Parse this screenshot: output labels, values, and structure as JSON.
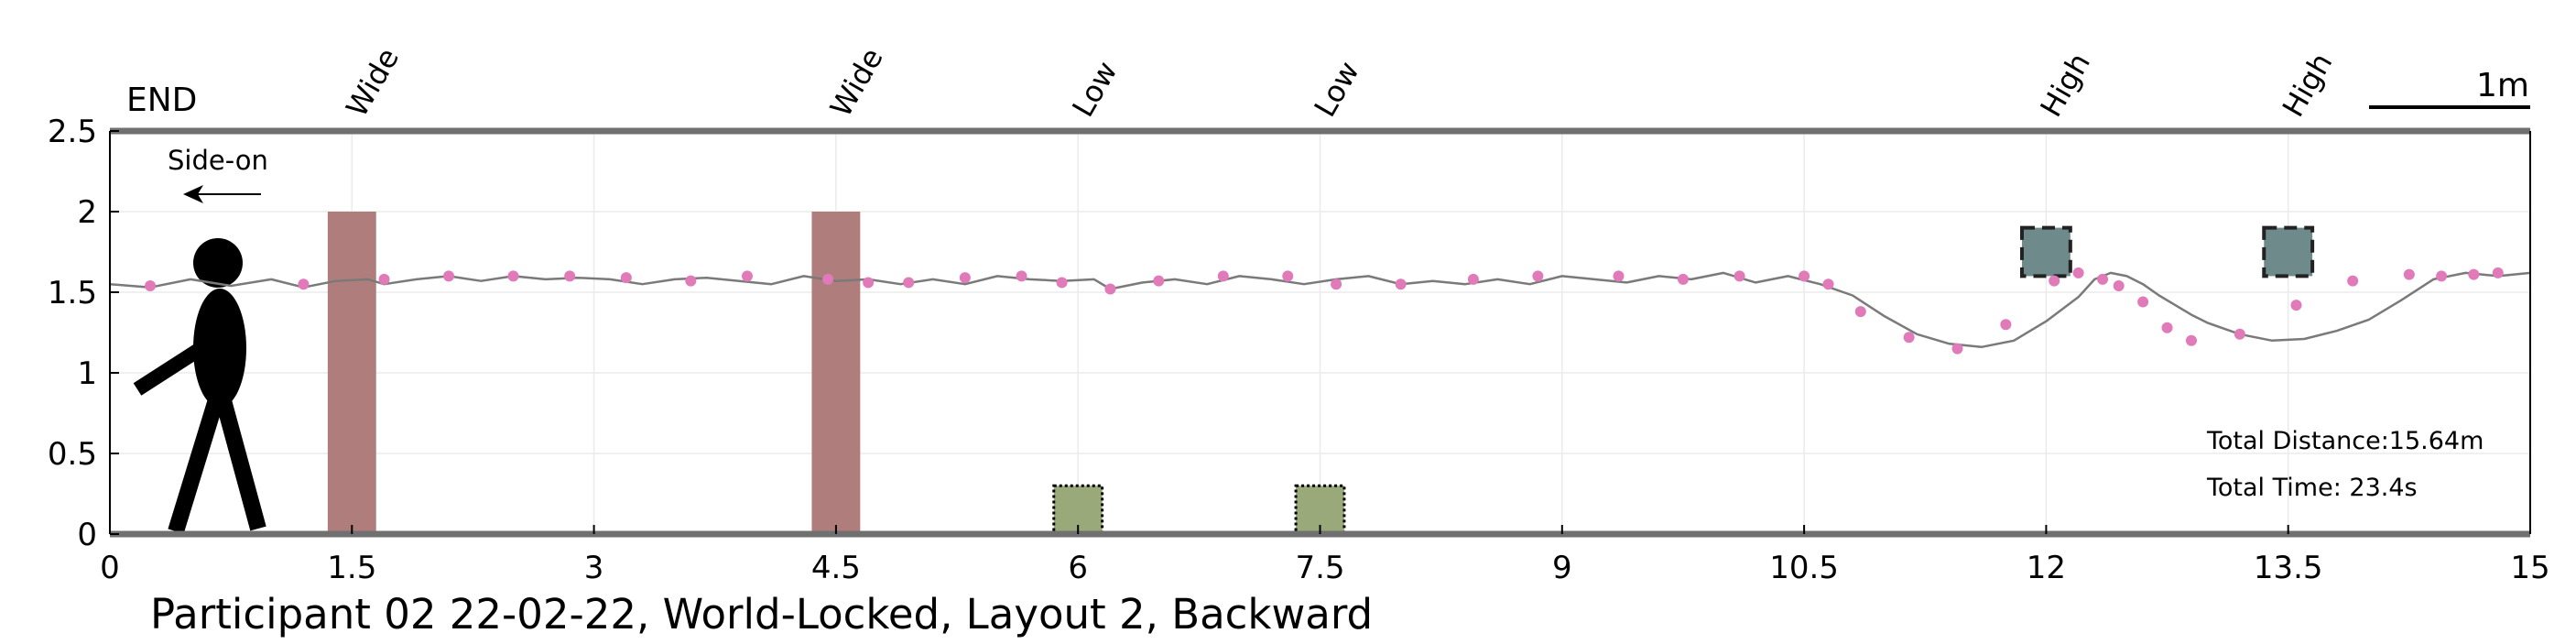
{
  "chart_data": {
    "type": "line",
    "title": "Participant 02 22-02-22, World-Locked, Layout 2, Backward",
    "xlabel": "",
    "ylabel": "",
    "xlim": [
      0,
      15
    ],
    "ylim": [
      0,
      2.5
    ],
    "x_ticks": [
      "0",
      "1.5",
      "3",
      "4.5",
      "6",
      "7.5",
      "9",
      "10.5",
      "12",
      "13.5",
      "15"
    ],
    "y_ticks": [
      "0",
      "0.5",
      "1",
      "1.5",
      "2",
      "2.5"
    ],
    "grid": true,
    "end_label": "END",
    "direction_label": "Side-on",
    "scale_bar_label": "1m",
    "scale_bar_length_m": 1,
    "annotations": [
      "Total Distance:15.64m",
      "Total Time: 23.4s"
    ],
    "colors": {
      "trajectory": "#7a7a7a",
      "samples": "#e07ab8",
      "wide_obstacle": "#b07d7d",
      "low_obstacle": "#9aa97a",
      "high_obstacle": "#6e8a8a",
      "axis": "#707070"
    },
    "obstacles": [
      {
        "label": "Wide",
        "kind": "wide",
        "x": [
          1.35,
          1.65
        ],
        "y": [
          0,
          2.0
        ]
      },
      {
        "label": "Wide",
        "kind": "wide",
        "x": [
          4.35,
          4.65
        ],
        "y": [
          0,
          2.0
        ]
      },
      {
        "label": "Low",
        "kind": "low",
        "x": [
          5.85,
          6.15
        ],
        "y": [
          0,
          0.3
        ]
      },
      {
        "label": "Low",
        "kind": "low",
        "x": [
          7.35,
          7.65
        ],
        "y": [
          0,
          0.3
        ]
      },
      {
        "label": "High",
        "kind": "high",
        "x": [
          11.85,
          12.15
        ],
        "y": [
          1.6,
          1.9
        ]
      },
      {
        "label": "High",
        "kind": "high",
        "x": [
          13.35,
          13.65
        ],
        "y": [
          1.6,
          1.9
        ]
      }
    ],
    "series": [
      {
        "x": [
          0,
          0.25,
          0.5,
          0.75,
          1.0,
          1.2,
          1.4,
          1.6,
          1.7,
          1.9,
          2.1,
          2.3,
          2.5,
          2.7,
          2.9,
          3.1,
          3.3,
          3.5,
          3.7,
          3.9,
          4.1,
          4.3,
          4.5,
          4.7,
          4.9,
          5.1,
          5.3,
          5.5,
          5.7,
          5.9,
          6.1,
          6.2,
          6.4,
          6.6,
          6.8,
          7.0,
          7.2,
          7.4,
          7.6,
          7.8,
          8.0,
          8.2,
          8.4,
          8.6,
          8.8,
          9.0,
          9.2,
          9.4,
          9.6,
          9.8,
          10.0,
          10.2,
          10.4,
          10.6,
          10.8,
          11.0,
          11.2,
          11.4,
          11.6,
          11.8,
          12.0,
          12.2,
          12.3,
          12.4,
          12.5,
          12.6,
          12.7,
          12.8,
          12.9,
          13.0,
          13.2,
          13.4,
          13.6,
          13.8,
          14.0,
          14.2,
          14.4,
          14.6,
          14.8,
          15.0
        ],
        "y": [
          1.55,
          1.53,
          1.58,
          1.54,
          1.58,
          1.53,
          1.57,
          1.58,
          1.55,
          1.58,
          1.6,
          1.57,
          1.6,
          1.58,
          1.59,
          1.58,
          1.55,
          1.58,
          1.59,
          1.57,
          1.55,
          1.6,
          1.57,
          1.58,
          1.55,
          1.58,
          1.55,
          1.6,
          1.58,
          1.57,
          1.58,
          1.52,
          1.56,
          1.58,
          1.55,
          1.6,
          1.58,
          1.55,
          1.58,
          1.6,
          1.55,
          1.57,
          1.55,
          1.58,
          1.55,
          1.6,
          1.58,
          1.56,
          1.6,
          1.58,
          1.62,
          1.56,
          1.6,
          1.55,
          1.48,
          1.35,
          1.24,
          1.18,
          1.16,
          1.2,
          1.32,
          1.47,
          1.58,
          1.62,
          1.6,
          1.55,
          1.48,
          1.42,
          1.36,
          1.31,
          1.24,
          1.2,
          1.21,
          1.26,
          1.33,
          1.45,
          1.58,
          1.62,
          1.6,
          1.62
        ]
      }
    ],
    "samples": {
      "x": [
        0.25,
        1.2,
        1.7,
        2.1,
        2.5,
        2.85,
        3.2,
        3.6,
        3.95,
        4.45,
        4.7,
        4.95,
        5.3,
        5.65,
        5.9,
        6.2,
        6.5,
        6.9,
        7.3,
        7.6,
        8.0,
        8.45,
        8.85,
        9.35,
        9.75,
        10.1,
        10.5,
        10.65,
        10.85,
        11.15,
        11.45,
        11.75,
        12.05,
        12.2,
        12.35,
        12.45,
        12.6,
        12.75,
        12.9,
        13.2,
        13.55,
        13.9,
        14.25,
        14.45,
        14.65,
        14.8
      ],
      "y": [
        1.54,
        1.55,
        1.58,
        1.6,
        1.6,
        1.6,
        1.59,
        1.57,
        1.6,
        1.58,
        1.56,
        1.56,
        1.59,
        1.6,
        1.56,
        1.52,
        1.57,
        1.6,
        1.6,
        1.55,
        1.55,
        1.58,
        1.6,
        1.6,
        1.58,
        1.6,
        1.6,
        1.55,
        1.38,
        1.22,
        1.15,
        1.3,
        1.57,
        1.62,
        1.58,
        1.54,
        1.44,
        1.28,
        1.2,
        1.24,
        1.42,
        1.57,
        1.61,
        1.6,
        1.61,
        1.62
      ]
    }
  }
}
